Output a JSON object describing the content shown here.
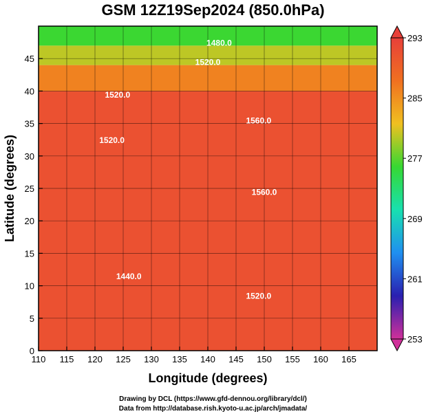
{
  "chart_data": {
    "type": "heatmap",
    "title": "GSM 12Z19Sep2024 (850.0hPa)",
    "xlabel": "Longitude (degrees)",
    "ylabel": "Latitude  (degrees)",
    "xlim": [
      110,
      170
    ],
    "ylim": [
      0,
      50
    ],
    "x_ticks": [
      "110",
      "115",
      "120",
      "125",
      "130",
      "135",
      "140",
      "145",
      "150",
      "155",
      "160",
      "165"
    ],
    "y_ticks": [
      "0",
      "5",
      "10",
      "15",
      "20",
      "25",
      "30",
      "35",
      "40",
      "45"
    ],
    "grid": true,
    "colorbar": {
      "position": "right",
      "range": [
        253,
        293
      ],
      "tick_labels": [
        "293",
        "285",
        "277",
        "269",
        "261",
        "253"
      ],
      "colors": [
        "#d0309a",
        "#2a1fb0",
        "#1f8ff0",
        "#18e0b0",
        "#36d832",
        "#f0c020",
        "#f07020",
        "#e8403a"
      ]
    },
    "contours": [
      {
        "label": "1440.0",
        "lon": 126,
        "lat": 11
      },
      {
        "label": "1520.0",
        "lon": 149,
        "lat": 8
      },
      {
        "label": "1520.0",
        "lon": 124,
        "lat": 39
      },
      {
        "label": "1520.0",
        "lon": 123,
        "lat": 32
      },
      {
        "label": "1560.0",
        "lon": 149,
        "lat": 35
      },
      {
        "label": "1560.0",
        "lon": 150,
        "lat": 24
      },
      {
        "label": "1480.0",
        "lon": 142,
        "lat": 47
      },
      {
        "label": "1520.0",
        "lon": 140,
        "lat": 44
      }
    ],
    "temperature_field": [
      {
        "lat_min": 0,
        "lat_max": 40,
        "value": 291
      },
      {
        "lat_min": 40,
        "lat_max": 44,
        "value": 286
      },
      {
        "lat_min": 44,
        "lat_max": 47,
        "value": 280
      },
      {
        "lat_min": 47,
        "lat_max": 50,
        "value": 276
      }
    ]
  },
  "credits": {
    "line1": "Drawing by DCL (https://www.gfd-dennou.org/library/dcl/)",
    "line2": "Data from http://database.rish.kyoto-u.ac.jp/arch/jmadata/"
  }
}
